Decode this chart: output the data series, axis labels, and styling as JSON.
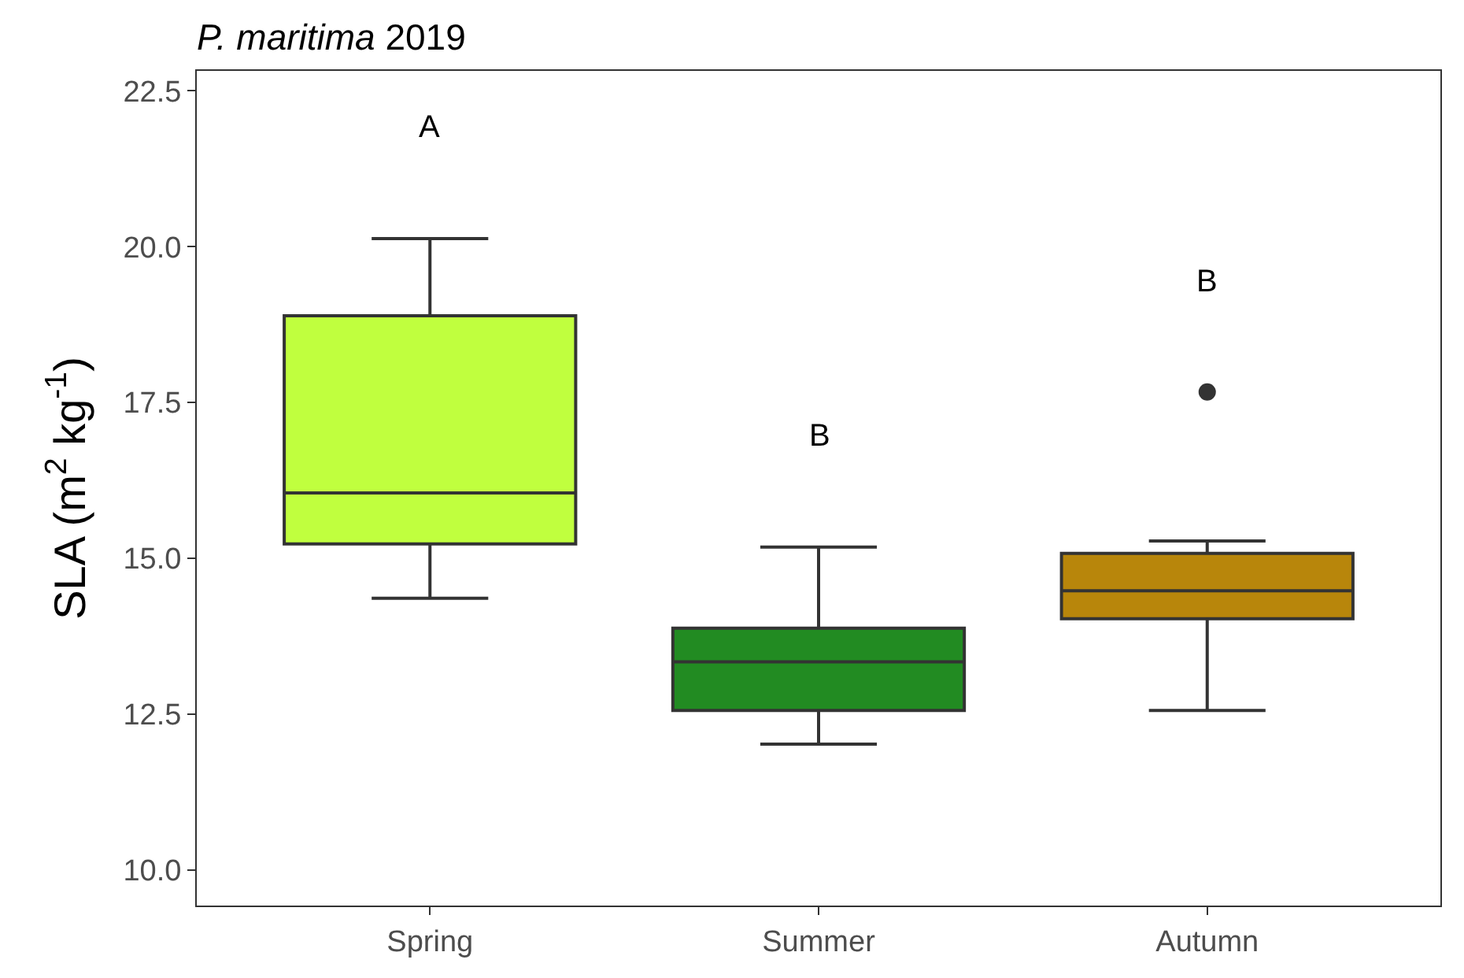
{
  "chart_data": {
    "type": "box",
    "title": "P. maritima 2019",
    "ylabel": "SLA (m$^{2}$ kg$^{-1}$)",
    "categories": [
      "Spring",
      "Summer",
      "Autumn"
    ],
    "colors": [
      "#c0ff3e",
      "#228b22",
      "#b8860b"
    ],
    "boxes": [
      {
        "low": 14.36,
        "q1": 15.23,
        "median": 16.05,
        "q3": 18.89,
        "high": 20.13
      },
      {
        "low": 12.02,
        "q1": 12.56,
        "median": 13.34,
        "q3": 13.88,
        "high": 15.18
      },
      {
        "low": 12.56,
        "q1": 14.03,
        "median": 14.48,
        "q3": 15.08,
        "high": 15.28,
        "outliers": [
          17.67
        ]
      }
    ],
    "annotations": [
      "A",
      "B",
      "B"
    ],
    "ylim": [
      9.43,
      22.82
    ],
    "yticks": [
      {
        "value": 10,
        "label": "10.0"
      },
      12.5,
      {
        "value": 15,
        "label": "15.0"
      },
      17.5,
      {
        "value": 20,
        "label": "20.0"
      },
      22.5
    ]
  }
}
